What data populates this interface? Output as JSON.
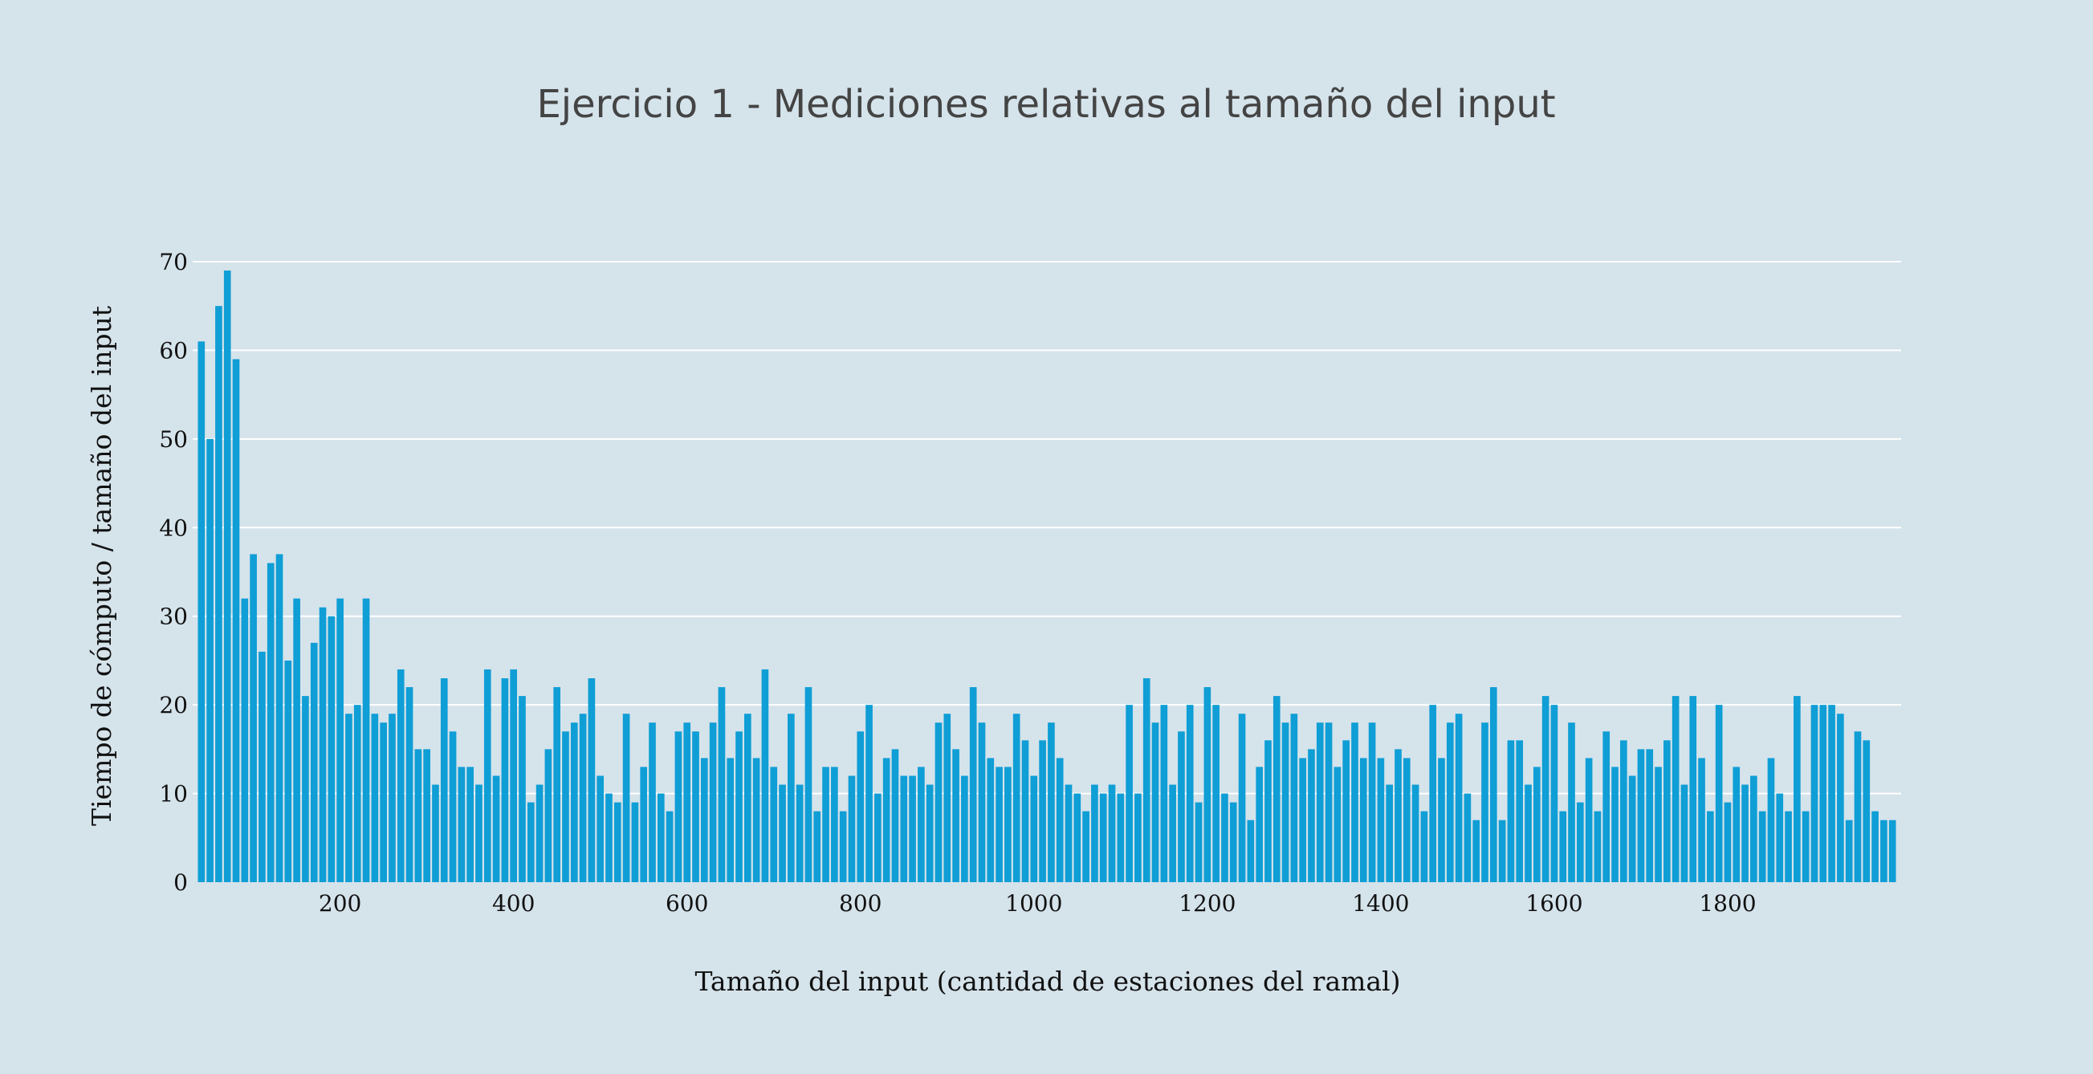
{
  "chart_data": {
    "type": "bar",
    "title": "Ejercicio 1 - Mediciones relativas al tamaño del input",
    "xlabel": "Tamaño del input (cantidad de estaciones del ramal)",
    "ylabel": "Tiempo de cómputo / tamaño del input",
    "ylim": [
      0,
      70
    ],
    "xlim": [
      30,
      2000
    ],
    "yticks": [
      0,
      10,
      20,
      30,
      40,
      50,
      60,
      70
    ],
    "xticks": [
      200,
      400,
      600,
      800,
      1000,
      1200,
      1400,
      1600,
      1800
    ],
    "grid": true,
    "x_start": 40,
    "x_step": 10,
    "values": [
      61,
      50,
      65,
      69,
      59,
      32,
      37,
      26,
      36,
      37,
      25,
      32,
      21,
      27,
      31,
      30,
      32,
      19,
      20,
      32,
      19,
      18,
      19,
      24,
      22,
      15,
      15,
      11,
      23,
      17,
      13,
      13,
      11,
      24,
      12,
      23,
      24,
      21,
      9,
      11,
      15,
      22,
      17,
      18,
      19,
      23,
      12,
      10,
      9,
      19,
      9,
      13,
      18,
      10,
      8,
      17,
      18,
      17,
      14,
      18,
      22,
      14,
      17,
      19,
      14,
      24,
      13,
      11,
      19,
      11,
      22,
      8,
      13,
      13,
      8,
      12,
      17,
      20,
      10,
      14,
      15,
      12,
      12,
      13,
      11,
      18,
      19,
      15,
      12,
      22,
      18,
      14,
      13,
      13,
      19,
      16,
      12,
      16,
      18,
      14,
      11,
      10,
      8,
      11,
      10,
      11,
      10,
      20,
      10,
      23,
      18,
      20,
      11,
      17,
      20,
      9,
      22,
      20,
      10,
      9,
      19,
      7,
      13,
      16,
      21,
      18,
      19,
      14,
      15,
      18,
      18,
      13,
      16,
      18,
      14,
      18,
      14,
      11,
      15,
      14,
      11,
      8,
      20,
      14,
      18,
      19,
      10,
      7,
      18,
      22,
      7,
      16,
      16,
      11,
      13,
      21,
      20,
      8,
      18,
      9,
      14,
      8,
      17,
      13,
      16,
      12,
      15,
      15,
      13,
      16,
      21,
      11,
      21,
      14,
      8,
      20,
      9,
      13,
      11,
      12,
      8,
      14,
      10,
      8,
      21,
      8,
      20,
      20,
      20,
      19,
      7,
      17,
      16,
      8,
      7,
      7
    ],
    "bar_color": "#0f9ed5",
    "background_color": "#d5e3eb",
    "grid_color": "#ffffff",
    "title_color": "#444444",
    "text_color": "#111111"
  }
}
